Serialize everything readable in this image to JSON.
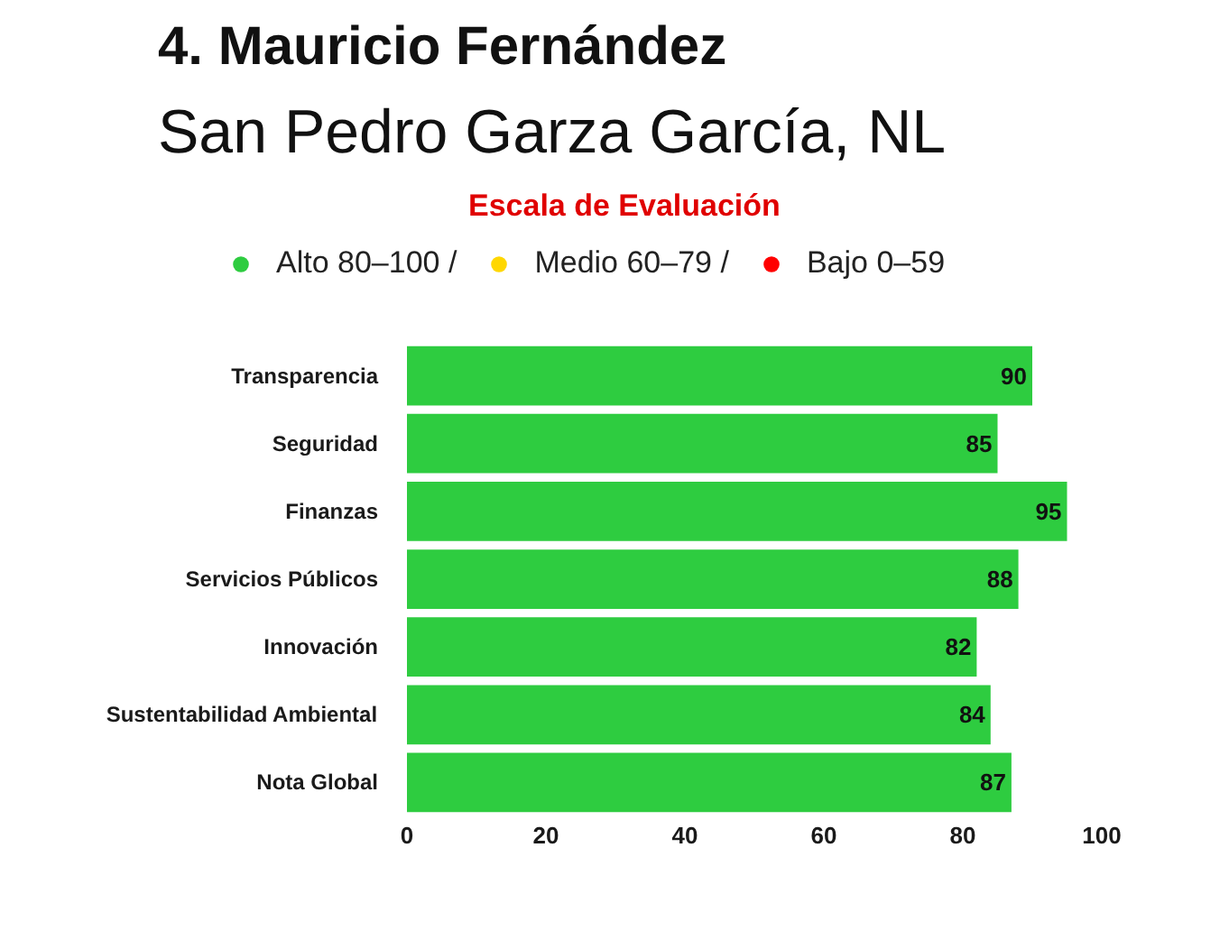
{
  "chart_data": {
    "type": "bar",
    "orientation": "horizontal",
    "stacked": true,
    "title": "4. Mauricio Fernández",
    "subtitle": "San Pedro Garza García, NL",
    "legend_title": "Escala de Evaluación",
    "categories": [
      "Transparencia",
      "Seguridad",
      "Finanzas",
      "Servicios Públicos",
      "Innovación",
      "Sustentabilidad Ambiental",
      "Nota Global"
    ],
    "series": [
      {
        "name": "Alto 80–100 /",
        "color": "#2ecc40",
        "values": [
          90,
          85,
          95,
          88,
          82,
          84,
          87
        ]
      },
      {
        "name": "Medio 60–79 /",
        "color": "#ffd700",
        "values": [
          null,
          null,
          null,
          null,
          null,
          null,
          null
        ]
      },
      {
        "name": "Bajo 0–59",
        "color": "#ff0000",
        "values": [
          null,
          null,
          null,
          null,
          null,
          null,
          null
        ]
      }
    ],
    "xlim": [
      0,
      100
    ],
    "xticks": [
      0,
      20,
      40,
      60,
      80,
      100
    ],
    "data_labels": true,
    "legend": "top"
  }
}
